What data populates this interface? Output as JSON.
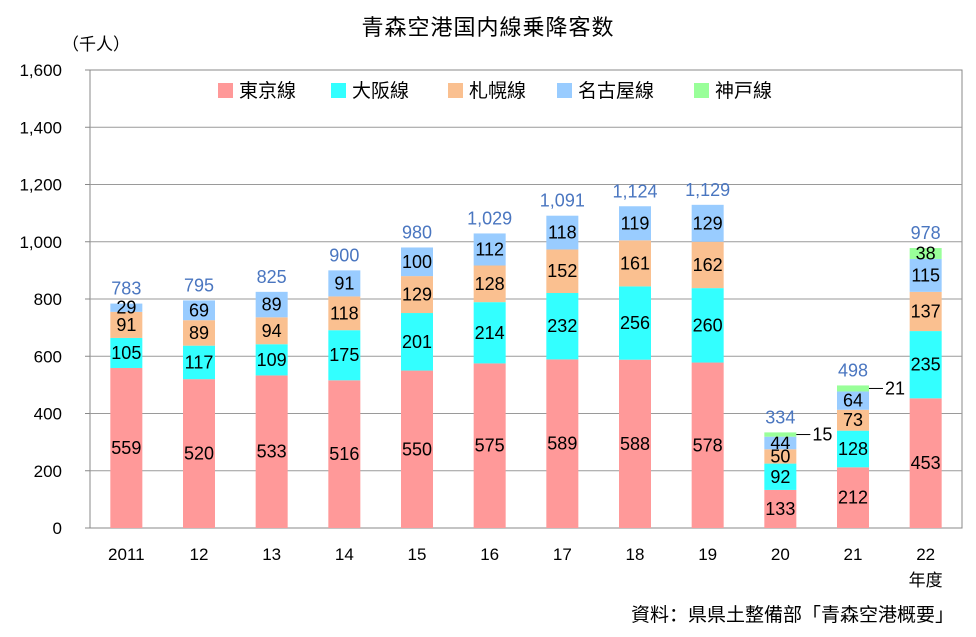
{
  "title": "青森空港国内線乗降客数",
  "unit": "（千人）",
  "source": "資料：県県土整備部「青森空港概要」",
  "chart_data": {
    "type": "bar",
    "stacked": true,
    "categories": [
      "2011",
      "12",
      "13",
      "14",
      "15",
      "16",
      "17",
      "18",
      "19",
      "20",
      "21",
      "22"
    ],
    "x_suffix_last": "年度",
    "ylim": [
      0,
      1600
    ],
    "yticks": [
      "0",
      "200",
      "400",
      "600",
      "800",
      "1,000",
      "1,200",
      "1,400",
      "1,600"
    ],
    "legend_position": "top-center",
    "series": [
      {
        "name": "東京線",
        "color": "#ff9999",
        "values": [
          559,
          520,
          533,
          516,
          550,
          575,
          589,
          588,
          578,
          133,
          212,
          453
        ]
      },
      {
        "name": "大阪線",
        "color": "#33ffff",
        "values": [
          105,
          117,
          109,
          175,
          201,
          214,
          232,
          256,
          260,
          92,
          128,
          235
        ]
      },
      {
        "name": "札幌線",
        "color": "#fac090",
        "values": [
          91,
          89,
          94,
          118,
          129,
          128,
          152,
          161,
          162,
          50,
          73,
          137
        ]
      },
      {
        "name": "名古屋線",
        "color": "#99ccff",
        "values": [
          29,
          69,
          89,
          91,
          100,
          112,
          118,
          119,
          129,
          44,
          64,
          115
        ]
      },
      {
        "name": "神戸線",
        "color": "#99ff99",
        "values": [
          null,
          null,
          null,
          null,
          null,
          null,
          null,
          null,
          null,
          15,
          21,
          38
        ]
      }
    ],
    "totals": [
      "783",
      "795",
      "825",
      "900",
      "980",
      "1,029",
      "1,091",
      "1,124",
      "1,129",
      "334",
      "498",
      "978"
    ]
  }
}
